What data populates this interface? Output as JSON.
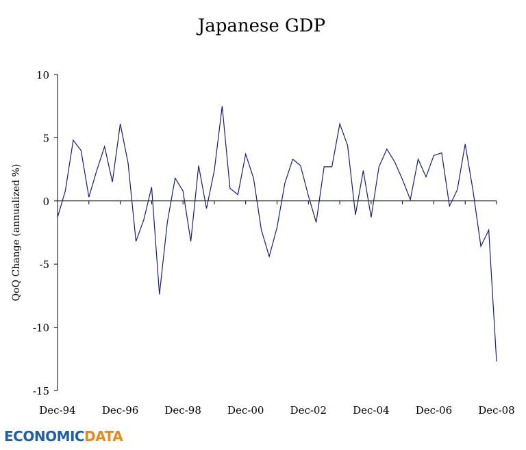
{
  "chart_data": {
    "type": "line",
    "title": "Japanese GDP",
    "ylabel": "QoQ Change (annualized %)",
    "xlabel": "",
    "ylim": [
      -15,
      10
    ],
    "yticks": [
      10,
      5,
      0,
      -5,
      -10,
      -15
    ],
    "xticks": [
      "Dec-94",
      "Dec-96",
      "Dec-98",
      "Dec-00",
      "Dec-02",
      "Dec-04",
      "Dec-06",
      "Dec-08"
    ],
    "grid": false,
    "series": [
      {
        "color": "#1a1a7a",
        "values": [
          -1.3,
          0.8,
          4.8,
          4.0,
          0.3,
          2.4,
          4.3,
          1.5,
          6.1,
          3.0,
          -3.2,
          -1.5,
          1.1,
          -7.4,
          -1.7,
          1.8,
          0.8,
          -3.2,
          2.8,
          -0.6,
          2.4,
          7.5,
          1.0,
          0.5,
          3.7,
          1.8,
          -2.3,
          -4.4,
          -2.1,
          1.4,
          3.3,
          2.8,
          0.4,
          -1.7,
          2.7,
          2.7,
          6.1,
          4.4,
          -1.1,
          2.4,
          -1.3,
          2.7,
          4.1,
          3.1,
          1.7,
          0.1,
          3.3,
          1.9,
          3.6,
          3.8,
          -0.4,
          0.9,
          4.5,
          0.8,
          -3.6,
          -2.3,
          -12.7
        ]
      }
    ]
  },
  "logo": {
    "part1": "ECONOMIC",
    "part2": "DATA"
  }
}
